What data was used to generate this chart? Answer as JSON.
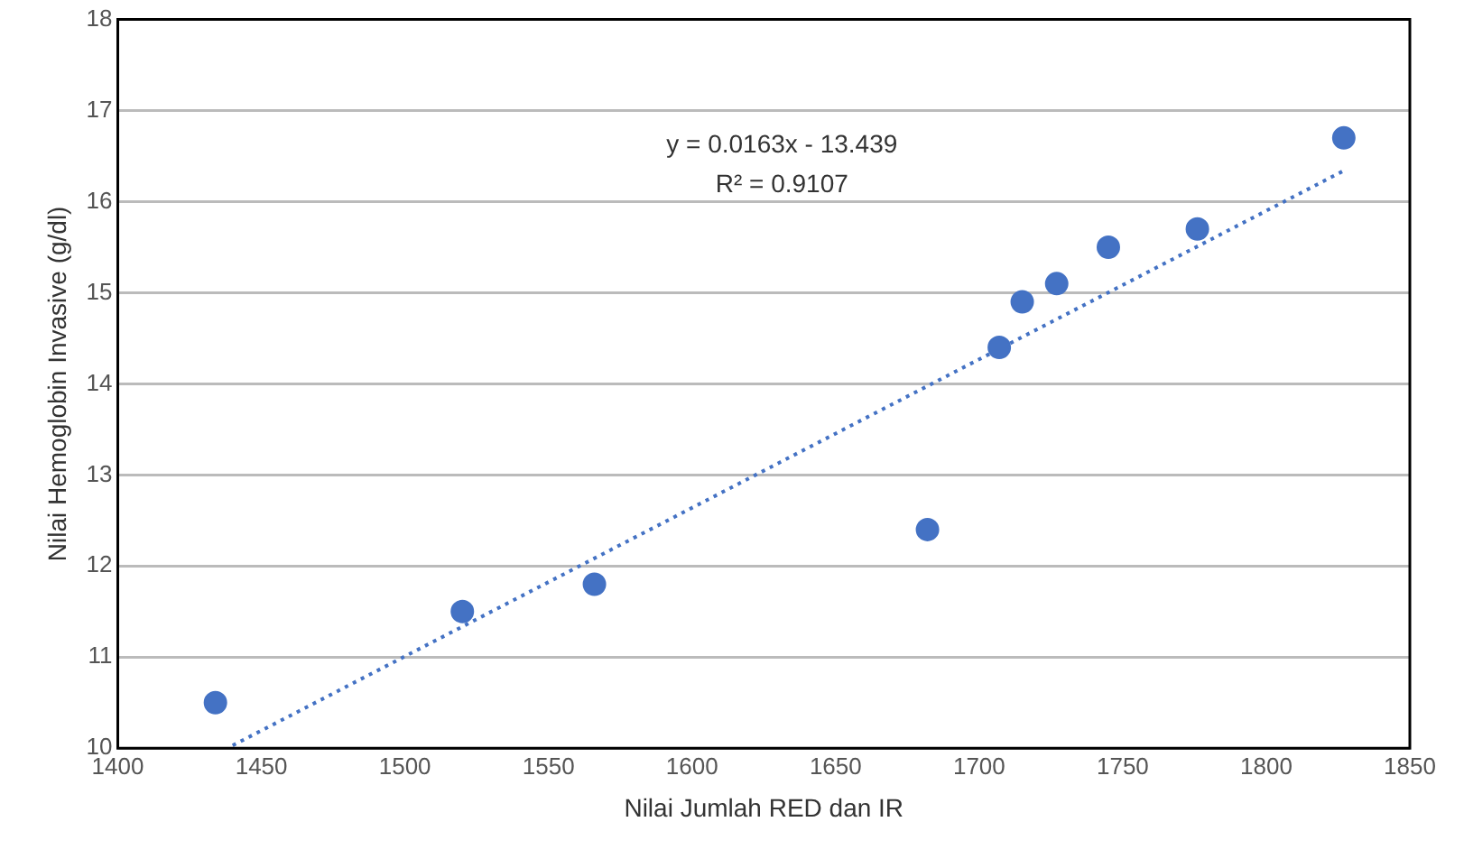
{
  "chart_data": {
    "type": "scatter",
    "xlabel": "Nilai Jumlah RED dan IR",
    "ylabel": "Nilai Hemoglobin Invasive (g/dl)",
    "xlim": [
      1400,
      1850
    ],
    "xticks": [
      1400,
      1450,
      1500,
      1550,
      1600,
      1650,
      1700,
      1750,
      1800,
      1850
    ],
    "ylim": [
      10,
      18
    ],
    "yticks": [
      10,
      11,
      12,
      13,
      14,
      15,
      16,
      17,
      18
    ],
    "grid": "y",
    "legend": false,
    "marker": "circle",
    "annotations": [
      "y = 0.0163x - 13.439",
      "R² = 0.9107"
    ],
    "series": [
      {
        "color": "#4472c4",
        "x": [
          1434,
          1520,
          1566,
          1682,
          1707,
          1715,
          1727,
          1745,
          1776,
          1827
        ],
        "values": [
          10.5,
          11.5,
          11.8,
          12.4,
          14.4,
          14.9,
          15.1,
          15.5,
          15.7,
          16.7
        ]
      },
      {
        "type": "line",
        "color": "#4472c4",
        "line_style": "dotted",
        "marker": "none",
        "x": [
          1440,
          1827
        ],
        "values": [
          10.03,
          16.34
        ]
      }
    ]
  }
}
